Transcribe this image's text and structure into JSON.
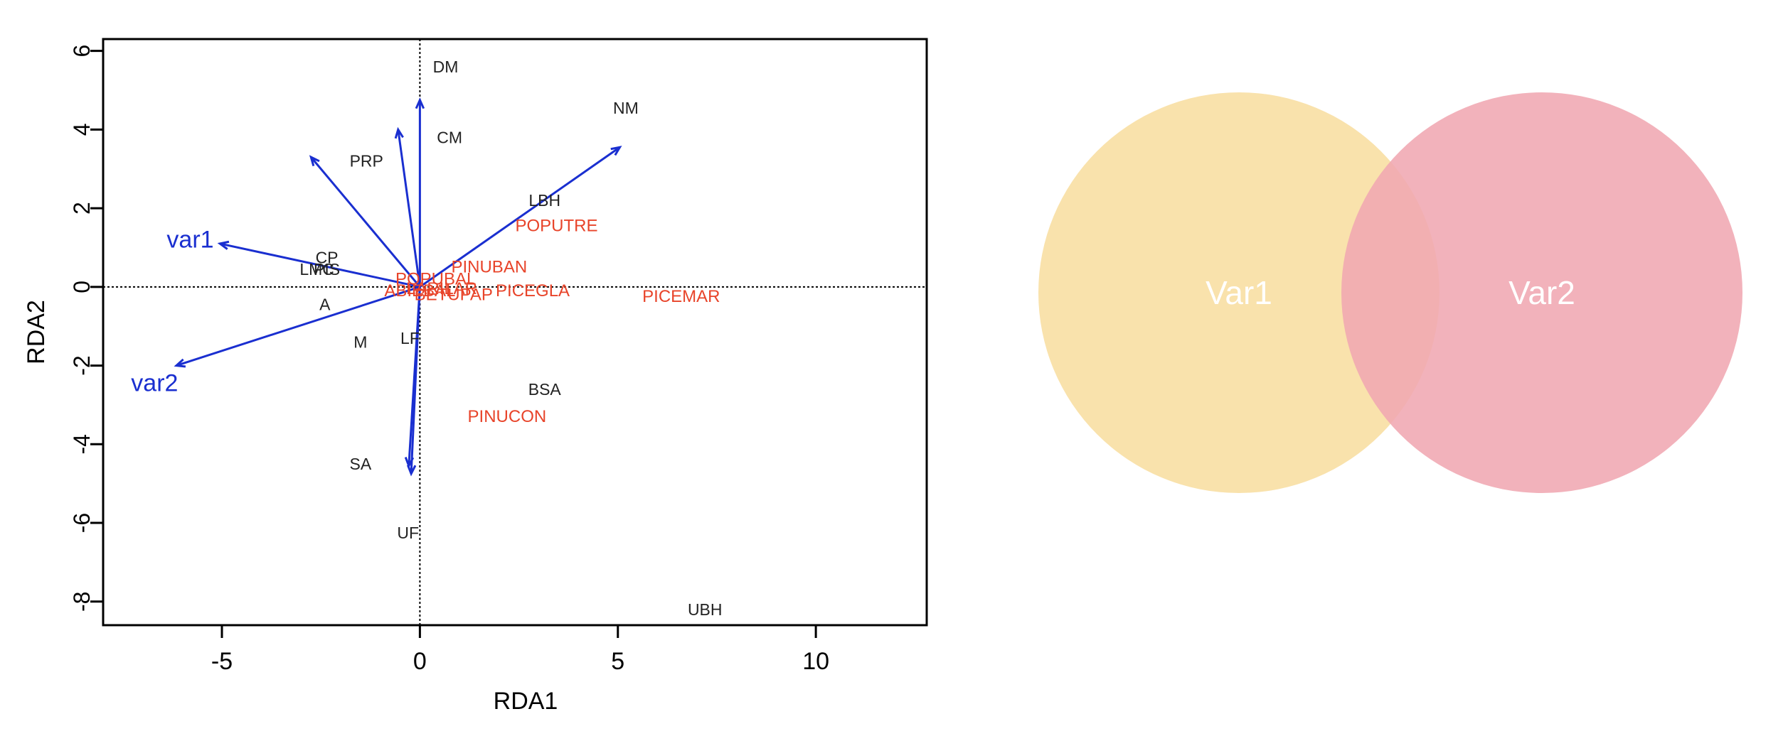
{
  "chart_data": [
    {
      "type": "scatter",
      "title": "",
      "xlabel": "RDA1",
      "ylabel": "RDA2",
      "xlim": [
        -8,
        12.8
      ],
      "ylim": [
        -8.6,
        6.3
      ],
      "x_ticks": [
        -5,
        0,
        5,
        10
      ],
      "x_tick_labels": [
        "-5",
        "0",
        "5",
        "10"
      ],
      "y_ticks": [
        -8,
        -6,
        -4,
        -2,
        0,
        2,
        4,
        6
      ],
      "y_tick_labels": [
        "-8",
        "-6",
        "-4",
        "-2",
        "0",
        "2",
        "4",
        "6"
      ],
      "zero_lines": true,
      "grid": false,
      "colors": {
        "arrows": "#1a2fd0",
        "species": "#e8442a",
        "sites": "#222222",
        "explanatory": "#1a2fd0"
      },
      "arrows": [
        {
          "x": 0.0,
          "y": 4.75
        },
        {
          "x": -0.55,
          "y": 4.0
        },
        {
          "x": -2.75,
          "y": 3.3
        },
        {
          "x": 5.05,
          "y": 3.55
        },
        {
          "x": -5.05,
          "y": 1.1
        },
        {
          "x": -6.15,
          "y": -2.0
        },
        {
          "x": -0.22,
          "y": -4.75
        },
        {
          "x": -0.28,
          "y": -4.55
        }
      ],
      "site_labels": [
        {
          "text": "DM",
          "x": 0.65,
          "y": 5.6
        },
        {
          "text": "NM",
          "x": 5.2,
          "y": 4.55
        },
        {
          "text": "CM",
          "x": 0.75,
          "y": 3.8
        },
        {
          "text": "PRP",
          "x": -1.35,
          "y": 3.2
        },
        {
          "text": "LBH",
          "x": 3.15,
          "y": 2.2
        },
        {
          "text": "CP",
          "x": -2.35,
          "y": 0.75
        },
        {
          "text": "LMC",
          "x": -2.6,
          "y": 0.45
        },
        {
          "text": "PIS",
          "x": -2.35,
          "y": 0.45
        },
        {
          "text": "A",
          "x": -2.4,
          "y": -0.45
        },
        {
          "text": "M",
          "x": -1.5,
          "y": -1.4
        },
        {
          "text": "LF",
          "x": -0.25,
          "y": -1.3
        },
        {
          "text": "BSA",
          "x": 3.15,
          "y": -2.6
        },
        {
          "text": "SA",
          "x": -1.5,
          "y": -4.5
        },
        {
          "text": "UF",
          "x": -0.3,
          "y": -6.25
        },
        {
          "text": "UBH",
          "x": 7.2,
          "y": -8.2
        }
      ],
      "species_labels": [
        {
          "text": "POPUTRE",
          "x": 3.45,
          "y": 1.55
        },
        {
          "text": "PINUBAN",
          "x": 1.75,
          "y": 0.5
        },
        {
          "text": "POPUBAL",
          "x": 0.4,
          "y": 0.2
        },
        {
          "text": "ABIEBAL",
          "x": 0.0,
          "y": -0.1
        },
        {
          "text": "LARILAR",
          "x": 0.55,
          "y": -0.05
        },
        {
          "text": "BETUPAP",
          "x": 0.85,
          "y": -0.2
        },
        {
          "text": "PICEGLA",
          "x": 2.85,
          "y": -0.1
        },
        {
          "text": "PICEMAR",
          "x": 6.6,
          "y": -0.25
        },
        {
          "text": "PINUCON",
          "x": 2.2,
          "y": -3.3
        }
      ],
      "explanatory_labels": [
        {
          "text": "var1",
          "x": -5.8,
          "y": 1.2
        },
        {
          "text": "var2",
          "x": -6.7,
          "y": -2.45
        }
      ]
    },
    {
      "type": "venn",
      "colors": {
        "set1": "#f9e2ac",
        "set2": "#f0a7b2",
        "label": "#ffffff"
      },
      "sets": [
        {
          "label": "Var1"
        },
        {
          "label": "Var2"
        }
      ]
    }
  ]
}
